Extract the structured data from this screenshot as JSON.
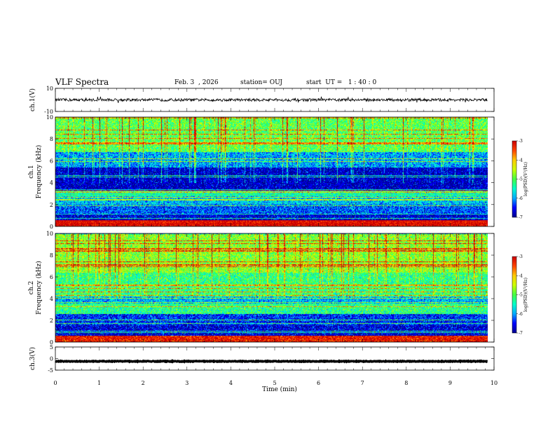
{
  "header": {
    "title": "VLF Spectra",
    "date": "Feb. 3  , 2026",
    "station": "station= OUJ",
    "start_ut": "start  UT =   1 : 40 : 0"
  },
  "chart_data": {
    "type": "heatmap",
    "xlabel": "Time  (min)",
    "x_ticks": [
      "0",
      "1",
      "2",
      "3",
      "4",
      "5",
      "6",
      "7",
      "8",
      "9",
      "10"
    ],
    "xlim": [
      0,
      10
    ],
    "data_extent_min": 9.85,
    "panels": [
      {
        "name": "ch1-waveform",
        "ylabel": "ch.1(V)",
        "y_ticks": [
          "10",
          "-10"
        ],
        "ylim": [
          -10,
          10
        ],
        "trace_level": 0,
        "trace_amplitude": 1.2
      },
      {
        "name": "ch1-spectrogram",
        "ylabel_line1": "ch.1",
        "ylabel_line2": "Frequency  (kHz)",
        "y_ticks": [
          "0",
          "2",
          "4",
          "6",
          "8",
          "10"
        ],
        "ylim": [
          0,
          10
        ],
        "colorbar": {
          "label": "log(PSD)(V²/Hz)",
          "ticks": [
            "-3",
            "-4",
            "-5",
            "-6",
            "-7"
          ],
          "range": [
            -7,
            -3
          ]
        },
        "bands": [
          {
            "f0": 0.0,
            "f1": 0.6,
            "level": 0.92
          },
          {
            "f0": 0.6,
            "f1": 1.2,
            "level": 0.12
          },
          {
            "f0": 1.2,
            "f1": 2.0,
            "level": 0.22
          },
          {
            "f0": 2.0,
            "f1": 2.8,
            "level": 0.32
          },
          {
            "f0": 2.8,
            "f1": 3.3,
            "level": 0.42
          },
          {
            "f0": 3.3,
            "f1": 5.4,
            "level": 0.1
          },
          {
            "f0": 5.4,
            "f1": 6.8,
            "level": 0.28
          },
          {
            "f0": 6.8,
            "f1": 10.0,
            "level": 0.5
          }
        ]
      },
      {
        "name": "ch2-spectrogram",
        "ylabel_line1": "ch.2",
        "ylabel_line2": "Frequency  (kHz)",
        "y_ticks": [
          "0",
          "2",
          "4",
          "6",
          "8",
          "10"
        ],
        "ylim": [
          0,
          10
        ],
        "colorbar": {
          "label": "log(PSD)(V²/Hz)",
          "ticks": [
            "-3",
            "-4",
            "-5",
            "-6",
            "-7"
          ],
          "range": [
            -7,
            -3
          ]
        },
        "bands": [
          {
            "f0": 0.0,
            "f1": 0.6,
            "level": 0.9
          },
          {
            "f0": 0.6,
            "f1": 1.6,
            "level": 0.12
          },
          {
            "f0": 1.6,
            "f1": 2.6,
            "level": 0.18
          },
          {
            "f0": 2.6,
            "f1": 3.6,
            "level": 0.45
          },
          {
            "f0": 3.6,
            "f1": 4.2,
            "level": 0.3
          },
          {
            "f0": 4.2,
            "f1": 6.4,
            "level": 0.45
          },
          {
            "f0": 6.4,
            "f1": 10.0,
            "level": 0.55
          }
        ]
      },
      {
        "name": "ch3-waveform",
        "ylabel": "ch.3(V)",
        "y_ticks": [
          "5",
          "0",
          "-5"
        ],
        "ylim": [
          -5,
          5
        ],
        "trace_level": -1.2,
        "trace_amplitude": 0.15
      }
    ]
  },
  "colors": {
    "colormap": [
      "#00008f",
      "#0000ff",
      "#00aaff",
      "#00ffcc",
      "#44ff44",
      "#ccff00",
      "#ffcc00",
      "#ff4400",
      "#cc0000"
    ],
    "trace": "#000000"
  }
}
